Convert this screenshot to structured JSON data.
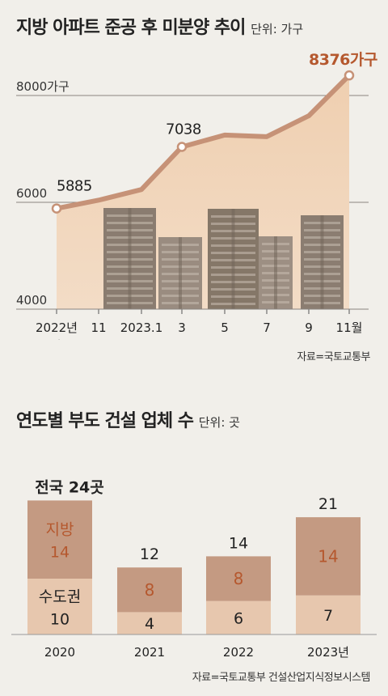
{
  "chart1": {
    "title": "지방 아파트 준공 후 미분양 추이",
    "unit_label": "단위: 가구",
    "source": "자료=국토교통부",
    "y_ticks": [
      "8000가구",
      "6000",
      "4000"
    ],
    "y_tick_values": [
      8000,
      6000,
      4000
    ],
    "x_ticks": [
      "2022년\n9월",
      "11",
      "2023.1",
      "3",
      "5",
      "7",
      "9",
      "11월"
    ],
    "colors": {
      "line": "#c69277",
      "area": "#efcfb0",
      "accent_label": "#b5582e"
    }
  },
  "chart2": {
    "title": "연도별 부도 건설 업체 수",
    "unit_label": "단위: 곳",
    "source": "자료=국토교통부 건설산업지식정보시스템",
    "top_note": "전국 24곳",
    "legend_top": "지방",
    "legend_bottom": "수도권",
    "colors": {
      "top": "#c49a82",
      "bottom": "#e7c7ae",
      "top_value": "#b5582e"
    }
  },
  "chart_data": [
    {
      "type": "area",
      "title": "지방 아파트 준공 후 미분양 추이",
      "x": [
        "2022년 9월",
        "11",
        "2023.1",
        "3",
        "5",
        "7",
        "9",
        "11월"
      ],
      "values": [
        5885,
        6040,
        6240,
        7038,
        7260,
        7230,
        7620,
        8376
      ],
      "data_labels": {
        "0": "5885",
        "3": "7038",
        "7": "8376가구"
      },
      "ylim": [
        4000,
        8500
      ],
      "grid": true
    },
    {
      "type": "bar",
      "title": "연도별 부도 건설 업체 수",
      "categories": [
        "2020",
        "2021",
        "2022",
        "2023년"
      ],
      "series": [
        {
          "name": "수도권",
          "values": [
            10,
            4,
            6,
            7
          ]
        },
        {
          "name": "지방",
          "values": [
            14,
            8,
            8,
            14
          ]
        }
      ],
      "totals": [
        24,
        12,
        14,
        21
      ],
      "total_labels": [
        "전국 24곳",
        "12",
        "14",
        "21"
      ],
      "stacked": true
    }
  ]
}
